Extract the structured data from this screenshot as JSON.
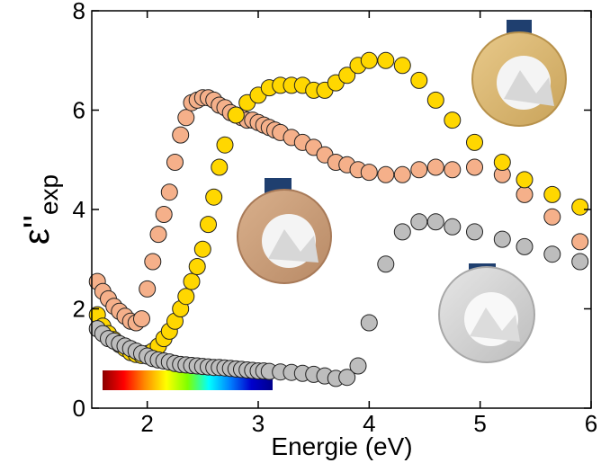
{
  "chart_data": {
    "type": "scatter",
    "title": "",
    "xlabel": "Energie (eV)",
    "ylabel_symbol": "ε''",
    "ylabel_subscript": "exp",
    "xlim": [
      1.5,
      6.0
    ],
    "ylim": [
      0,
      8
    ],
    "xticks": [
      2,
      3,
      4,
      5,
      6
    ],
    "yticks": [
      0,
      2,
      4,
      6,
      8
    ],
    "grid": false,
    "legend": "none",
    "annotations": [
      "spectrum-colorbar",
      "gold-medal-image",
      "bronze-medal-image",
      "silver-medal-image"
    ],
    "spectrum_colors": [
      "#8b0000",
      "#ff0000",
      "#ff8c00",
      "#ffff00",
      "#7fff00",
      "#00ffff",
      "#0080ff",
      "#0000cd",
      "#00008b"
    ],
    "series": [
      {
        "color": "#f5b08a",
        "x": [
          1.55,
          1.6,
          1.65,
          1.7,
          1.75,
          1.8,
          1.85,
          1.9,
          1.95,
          2.0,
          2.05,
          2.1,
          2.15,
          2.2,
          2.25,
          2.3,
          2.35,
          2.4,
          2.45,
          2.5,
          2.55,
          2.6,
          2.65,
          2.7,
          2.75,
          2.8,
          2.85,
          2.9,
          2.95,
          3.0,
          3.05,
          3.1,
          3.15,
          3.2,
          3.3,
          3.4,
          3.5,
          3.6,
          3.7,
          3.8,
          3.9,
          4.0,
          4.15,
          4.3,
          4.45,
          4.6,
          4.75,
          4.95,
          5.2,
          5.4,
          5.65,
          5.9
        ],
        "y": [
          2.55,
          2.35,
          2.2,
          2.05,
          1.95,
          1.85,
          1.75,
          1.72,
          1.8,
          2.4,
          2.95,
          3.5,
          3.9,
          4.35,
          4.95,
          5.5,
          5.85,
          6.15,
          6.2,
          6.25,
          6.25,
          6.2,
          6.1,
          6.05,
          5.95,
          5.9,
          5.85,
          5.8,
          5.8,
          5.75,
          5.7,
          5.65,
          5.6,
          5.55,
          5.45,
          5.35,
          5.25,
          5.1,
          4.95,
          4.9,
          4.8,
          4.75,
          4.7,
          4.7,
          4.8,
          4.85,
          4.8,
          4.85,
          4.7,
          4.3,
          3.85,
          3.35
        ]
      },
      {
        "color": "#ffd700",
        "x": [
          1.55,
          1.6,
          1.65,
          1.7,
          1.75,
          1.8,
          1.85,
          1.9,
          1.95,
          2.0,
          2.05,
          2.1,
          2.15,
          2.2,
          2.25,
          2.3,
          2.35,
          2.4,
          2.45,
          2.5,
          2.55,
          2.6,
          2.65,
          2.7,
          2.8,
          2.9,
          3.0,
          3.1,
          3.2,
          3.3,
          3.4,
          3.5,
          3.6,
          3.7,
          3.8,
          3.9,
          4.0,
          4.15,
          4.3,
          4.45,
          4.6,
          4.75,
          4.95,
          5.2,
          5.4,
          5.65,
          5.9
        ],
        "y": [
          1.88,
          1.65,
          1.5,
          1.38,
          1.28,
          1.2,
          1.12,
          1.08,
          1.06,
          1.1,
          1.15,
          1.25,
          1.4,
          1.55,
          1.75,
          2.0,
          2.25,
          2.55,
          2.85,
          3.2,
          3.7,
          4.25,
          4.85,
          5.3,
          5.9,
          6.15,
          6.3,
          6.45,
          6.5,
          6.5,
          6.5,
          6.4,
          6.4,
          6.55,
          6.7,
          6.9,
          7.0,
          7.0,
          6.9,
          6.6,
          6.2,
          5.8,
          5.35,
          4.95,
          4.6,
          4.3,
          4.05
        ]
      },
      {
        "color": "#bdbdbd",
        "x": [
          1.55,
          1.6,
          1.65,
          1.7,
          1.75,
          1.8,
          1.85,
          1.9,
          1.95,
          2.0,
          2.05,
          2.1,
          2.15,
          2.2,
          2.25,
          2.3,
          2.35,
          2.4,
          2.45,
          2.5,
          2.55,
          2.6,
          2.65,
          2.7,
          2.75,
          2.8,
          2.85,
          2.9,
          2.95,
          3.0,
          3.05,
          3.1,
          3.2,
          3.3,
          3.4,
          3.5,
          3.6,
          3.7,
          3.8,
          3.9,
          4.0,
          4.15,
          4.3,
          4.45,
          4.6,
          4.75,
          4.95,
          5.2,
          5.4,
          5.65,
          5.9
        ],
        "y": [
          1.6,
          1.5,
          1.4,
          1.35,
          1.3,
          1.25,
          1.2,
          1.15,
          1.1,
          1.05,
          1.0,
          0.97,
          0.95,
          0.93,
          0.9,
          0.88,
          0.87,
          0.86,
          0.85,
          0.84,
          0.83,
          0.82,
          0.82,
          0.81,
          0.8,
          0.79,
          0.78,
          0.77,
          0.76,
          0.75,
          0.75,
          0.74,
          0.73,
          0.72,
          0.7,
          0.68,
          0.65,
          0.6,
          0.62,
          0.85,
          1.72,
          2.9,
          3.55,
          3.75,
          3.75,
          3.65,
          3.55,
          3.4,
          3.25,
          3.1,
          2.95
        ]
      }
    ]
  }
}
